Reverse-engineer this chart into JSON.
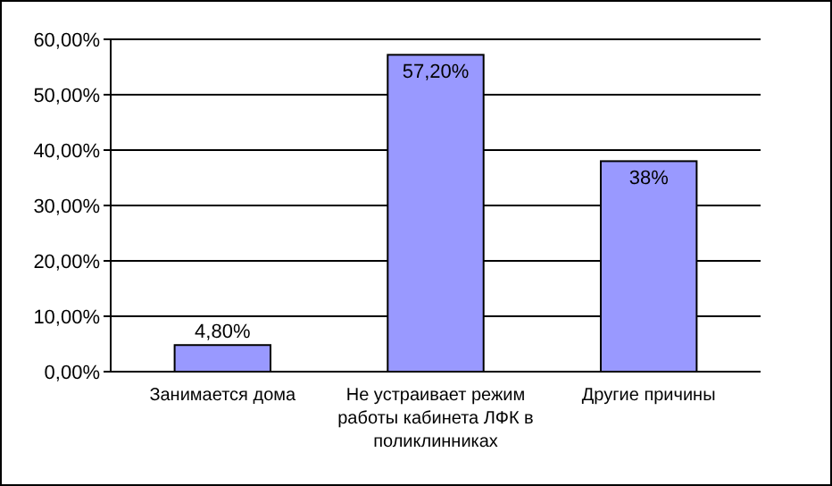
{
  "chart_data": {
    "type": "bar",
    "categories": [
      "Занимается дома",
      "Не устраивает режим работы кабинета ЛФК в поликлинниках",
      "Другие причины"
    ],
    "values": [
      4.8,
      57.2,
      38
    ],
    "value_labels": [
      "4,80%",
      "57,20%",
      "38%"
    ],
    "color": "#9999ff",
    "ylim": [
      0,
      60
    ],
    "yticks": [
      {
        "value": 0,
        "label": "0,00%"
      },
      {
        "value": 10,
        "label": "10,00%"
      },
      {
        "value": 20,
        "label": "20,00%"
      },
      {
        "value": 30,
        "label": "30,00%"
      },
      {
        "value": 40,
        "label": "40,00%"
      },
      {
        "value": 50,
        "label": "50,00%"
      },
      {
        "value": 60,
        "label": "60,00%"
      }
    ],
    "grid": "y"
  }
}
